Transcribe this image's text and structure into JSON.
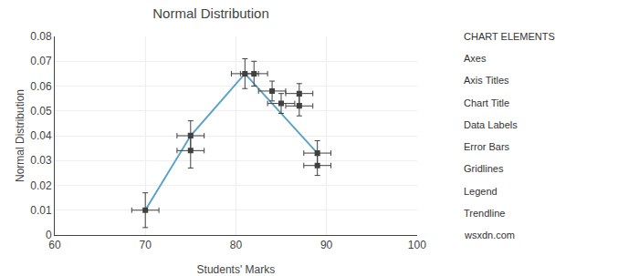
{
  "chart_data": {
    "type": "line",
    "title": "Normal Distribution",
    "xlabel": "Students' Marks",
    "ylabel": "Normal Distribution",
    "xlim": [
      60,
      100
    ],
    "ylim": [
      0,
      0.08
    ],
    "xticks": [
      60,
      70,
      80,
      90,
      100
    ],
    "yticks": [
      0,
      0.01,
      0.02,
      0.03,
      0.04,
      0.05,
      0.06,
      0.07,
      0.08
    ],
    "grid": true,
    "series": [
      {
        "type": "line",
        "color": "#5BA3C9",
        "x": [
          70,
          75,
          81,
          89
        ],
        "values": [
          0.01,
          0.04,
          0.065,
          0.033
        ]
      },
      {
        "type": "scatter",
        "color": "#404040",
        "marker": "square",
        "x": [
          70,
          75,
          75,
          81,
          82,
          84,
          85,
          87,
          87,
          89,
          89
        ],
        "values": [
          0.01,
          0.034,
          0.04,
          0.065,
          0.065,
          0.058,
          0.053,
          0.057,
          0.052,
          0.033,
          0.028
        ],
        "xerr": [
          1.5,
          1.5,
          1.5,
          1.5,
          1.5,
          1.5,
          1.5,
          1.5,
          1.5,
          1.5,
          1.5
        ],
        "yerr": [
          0.007,
          0.007,
          0.006,
          0.006,
          0.005,
          0.004,
          0.004,
          0.004,
          0.004,
          0.005,
          0.004
        ]
      }
    ],
    "annotations": [
      "CHART ELEMENTS",
      "Axes",
      "Axis Titles",
      "Chart Title",
      "Data Labels",
      "Error Bars",
      "Gridlines",
      "Legend",
      "Trendline",
      "wsxdn.com"
    ]
  }
}
